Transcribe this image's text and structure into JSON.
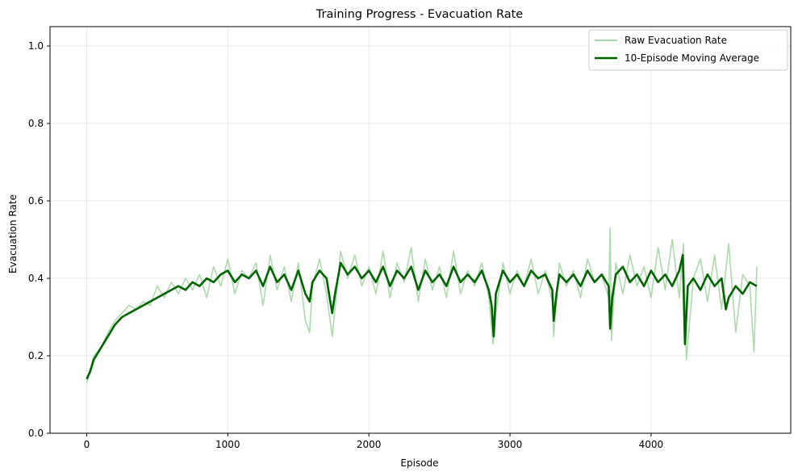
{
  "colors": {
    "raw": "#9fd39f",
    "moving_average": "#006400",
    "grid": "#e3e3e3",
    "axis": "#000000"
  },
  "chart_data": {
    "type": "line",
    "title": "Training Progress - Evacuation Rate",
    "xlabel": "Episode",
    "ylabel": "Evacuation Rate",
    "xlim": [
      -260,
      4990
    ],
    "ylim": [
      0,
      1.05
    ],
    "xticks": [
      0,
      1000,
      2000,
      3000,
      4000
    ],
    "xtick_labels": [
      "0",
      "1000",
      "2000",
      "3000",
      "4000"
    ],
    "yticks": [
      0.0,
      0.2,
      0.4,
      0.6,
      0.8,
      1.0
    ],
    "ytick_labels": [
      "0.0",
      "0.2",
      "0.4",
      "0.6",
      "0.8",
      "1.0"
    ],
    "grid": true,
    "legend_position": "top-right",
    "series": [
      {
        "name": "Raw Evacuation Rate",
        "role": "raw",
        "x": [
          0,
          50,
          100,
          150,
          200,
          250,
          300,
          350,
          400,
          450,
          500,
          550,
          600,
          650,
          700,
          750,
          800,
          850,
          900,
          950,
          1000,
          1050,
          1100,
          1150,
          1200,
          1250,
          1300,
          1350,
          1400,
          1450,
          1500,
          1550,
          1580,
          1600,
          1650,
          1700,
          1740,
          1760,
          1800,
          1850,
          1900,
          1950,
          2000,
          2050,
          2100,
          2150,
          2200,
          2250,
          2300,
          2350,
          2400,
          2450,
          2500,
          2550,
          2600,
          2650,
          2700,
          2750,
          2800,
          2850,
          2880,
          2900,
          2950,
          3000,
          3050,
          3100,
          3150,
          3200,
          3250,
          3300,
          3310,
          3350,
          3400,
          3450,
          3500,
          3550,
          3600,
          3650,
          3700,
          3710,
          3720,
          3750,
          3800,
          3850,
          3900,
          3950,
          4000,
          4050,
          4100,
          4150,
          4200,
          4230,
          4250,
          4300,
          4350,
          4400,
          4450,
          4500,
          4550,
          4600,
          4650,
          4700,
          4730,
          4750
        ],
        "y": [
          0.13,
          0.2,
          0.22,
          0.26,
          0.29,
          0.31,
          0.33,
          0.32,
          0.34,
          0.33,
          0.38,
          0.35,
          0.39,
          0.36,
          0.4,
          0.37,
          0.41,
          0.35,
          0.43,
          0.38,
          0.45,
          0.36,
          0.42,
          0.4,
          0.44,
          0.33,
          0.46,
          0.37,
          0.43,
          0.34,
          0.44,
          0.29,
          0.26,
          0.38,
          0.45,
          0.36,
          0.25,
          0.32,
          0.47,
          0.4,
          0.46,
          0.38,
          0.43,
          0.36,
          0.47,
          0.35,
          0.44,
          0.39,
          0.48,
          0.34,
          0.45,
          0.37,
          0.43,
          0.35,
          0.47,
          0.36,
          0.42,
          0.38,
          0.44,
          0.35,
          0.23,
          0.31,
          0.44,
          0.36,
          0.42,
          0.38,
          0.45,
          0.36,
          0.42,
          0.34,
          0.25,
          0.44,
          0.38,
          0.42,
          0.35,
          0.45,
          0.39,
          0.41,
          0.35,
          0.53,
          0.24,
          0.44,
          0.36,
          0.46,
          0.38,
          0.43,
          0.35,
          0.48,
          0.37,
          0.5,
          0.35,
          0.49,
          0.19,
          0.4,
          0.45,
          0.34,
          0.46,
          0.32,
          0.49,
          0.26,
          0.41,
          0.38,
          0.21,
          0.43
        ]
      },
      {
        "name": "10-Episode Moving Average",
        "role": "moving_average",
        "x": [
          0,
          25,
          50,
          100,
          150,
          200,
          250,
          300,
          350,
          400,
          450,
          500,
          550,
          600,
          650,
          700,
          750,
          800,
          850,
          900,
          950,
          1000,
          1050,
          1100,
          1150,
          1200,
          1250,
          1300,
          1350,
          1400,
          1450,
          1500,
          1550,
          1580,
          1600,
          1650,
          1700,
          1740,
          1760,
          1800,
          1850,
          1900,
          1950,
          2000,
          2050,
          2100,
          2150,
          2200,
          2250,
          2300,
          2350,
          2400,
          2450,
          2500,
          2550,
          2600,
          2650,
          2700,
          2750,
          2800,
          2850,
          2870,
          2885,
          2900,
          2950,
          3000,
          3050,
          3100,
          3150,
          3200,
          3250,
          3300,
          3310,
          3330,
          3350,
          3400,
          3450,
          3500,
          3550,
          3600,
          3650,
          3700,
          3710,
          3725,
          3750,
          3800,
          3850,
          3900,
          3950,
          4000,
          4050,
          4100,
          4150,
          4200,
          4225,
          4240,
          4260,
          4300,
          4350,
          4400,
          4450,
          4500,
          4530,
          4550,
          4600,
          4650,
          4700,
          4750
        ],
        "y": [
          0.14,
          0.16,
          0.19,
          0.22,
          0.25,
          0.28,
          0.3,
          0.31,
          0.32,
          0.33,
          0.34,
          0.35,
          0.36,
          0.37,
          0.38,
          0.37,
          0.39,
          0.38,
          0.4,
          0.39,
          0.41,
          0.42,
          0.39,
          0.41,
          0.4,
          0.42,
          0.38,
          0.43,
          0.39,
          0.41,
          0.37,
          0.42,
          0.36,
          0.34,
          0.39,
          0.42,
          0.4,
          0.31,
          0.36,
          0.44,
          0.41,
          0.43,
          0.4,
          0.42,
          0.39,
          0.43,
          0.38,
          0.42,
          0.4,
          0.43,
          0.37,
          0.42,
          0.39,
          0.41,
          0.38,
          0.43,
          0.39,
          0.41,
          0.39,
          0.42,
          0.37,
          0.33,
          0.25,
          0.36,
          0.42,
          0.39,
          0.41,
          0.38,
          0.42,
          0.4,
          0.41,
          0.37,
          0.29,
          0.36,
          0.41,
          0.39,
          0.41,
          0.38,
          0.42,
          0.39,
          0.41,
          0.38,
          0.27,
          0.35,
          0.41,
          0.43,
          0.39,
          0.41,
          0.38,
          0.42,
          0.39,
          0.41,
          0.38,
          0.42,
          0.46,
          0.23,
          0.38,
          0.4,
          0.37,
          0.41,
          0.38,
          0.4,
          0.32,
          0.35,
          0.38,
          0.36,
          0.39,
          0.38
        ]
      }
    ]
  }
}
